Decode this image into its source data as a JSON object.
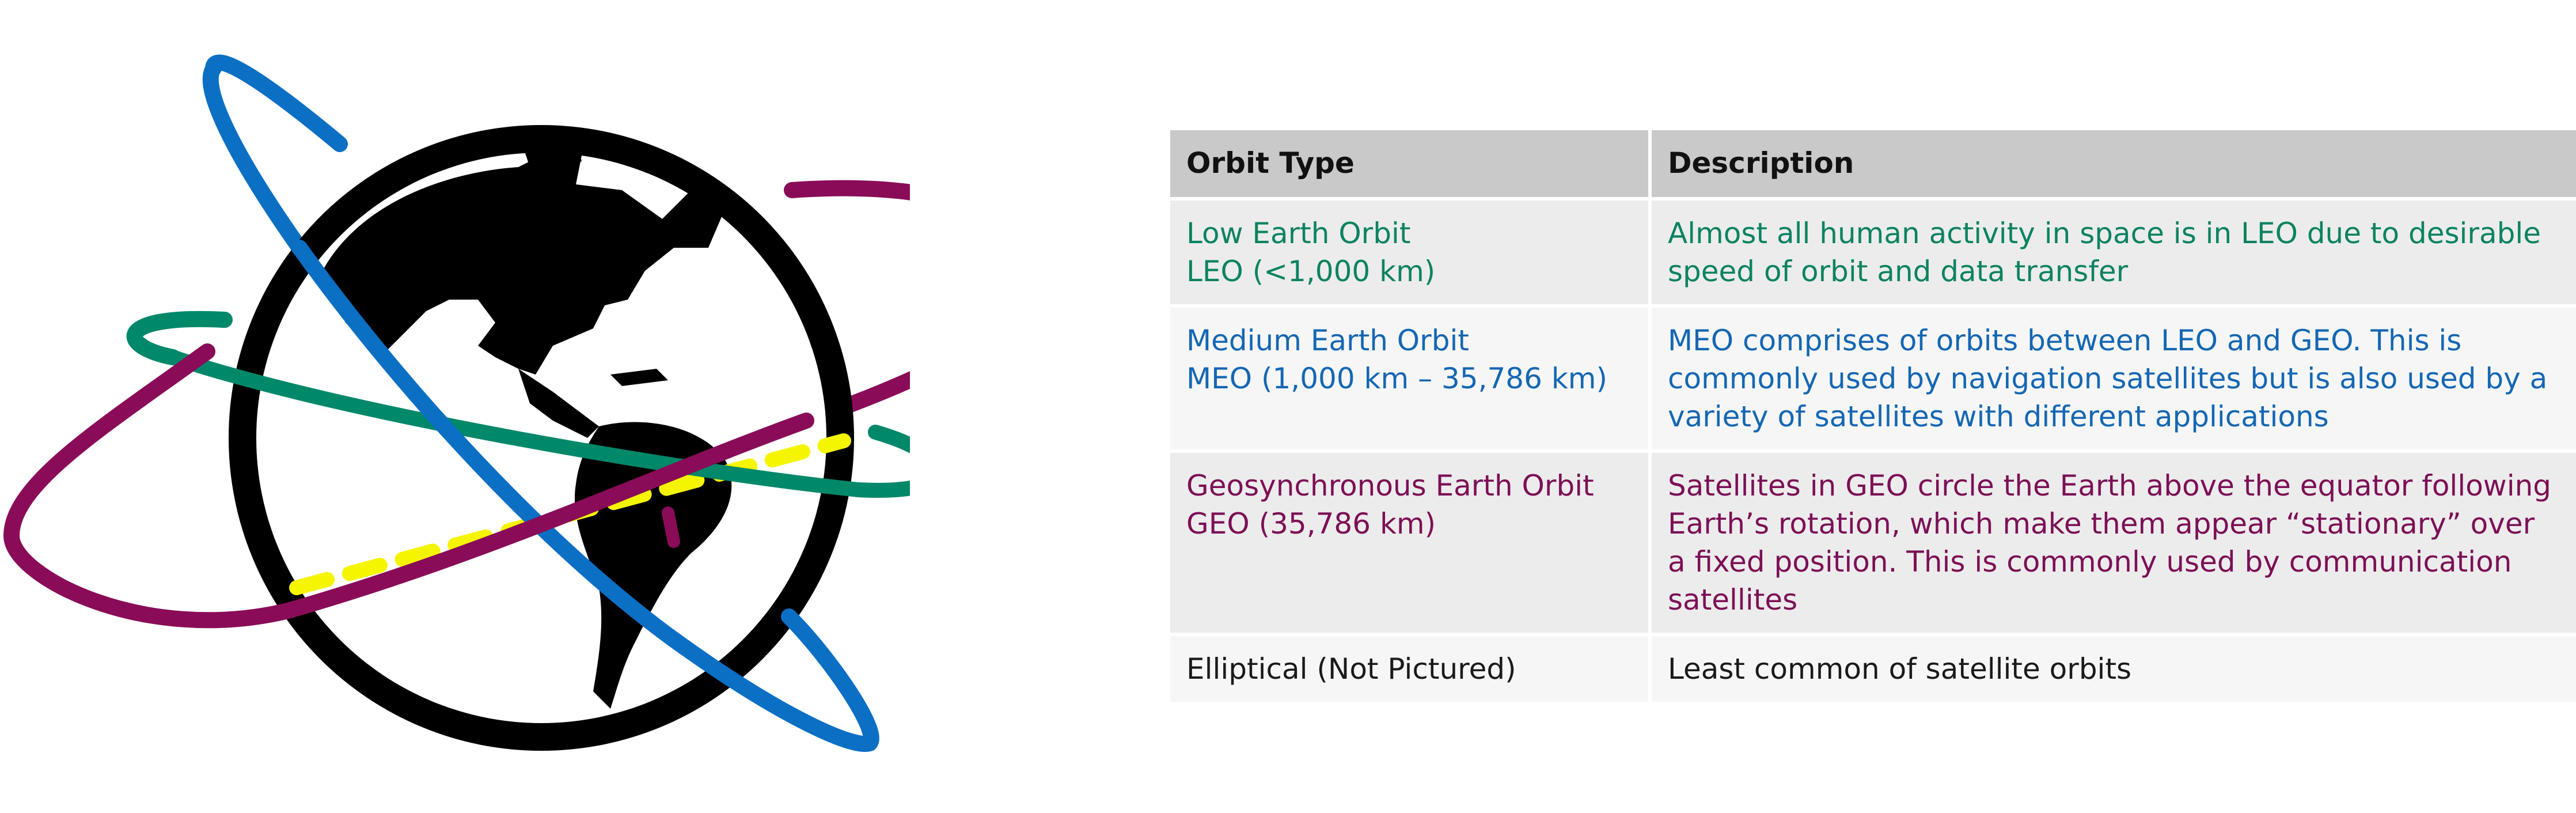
{
  "colors": {
    "leo": "#0b8362",
    "meo": "#1467b3",
    "geo": "#7d0f56",
    "elliptical": "#1a1a1a",
    "header_bg": "#c9c9c9",
    "equator_dash": "#f5f500",
    "orbit_blue": "#0b6fc4",
    "orbit_green": "#00886a",
    "orbit_purple": "#8a0c58"
  },
  "table": {
    "headers": {
      "type": "Orbit Type",
      "description": "Description"
    },
    "rows": [
      {
        "key": "leo",
        "type_lines": [
          "Low Earth Orbit",
          "LEO (<1,000 km)"
        ],
        "description": "Almost all human activity in space is in LEO due to desirable speed of orbit and data transfer"
      },
      {
        "key": "meo",
        "type_lines": [
          "Medium Earth Orbit",
          "MEO (1,000 km – 35,786 km)"
        ],
        "description": "MEO comprises of orbits between LEO and GEO. This is commonly used by navigation satellites but is also used by a variety of satellites with different applications"
      },
      {
        "key": "geo",
        "type_lines": [
          "Geosynchronous Earth Orbit",
          "GEO (35,786 km)"
        ],
        "description": "Satellites in GEO circle the Earth above the equator following Earth’s rotation, which make them appear “stationary” over a fixed position. This is commonly used by communication satellites"
      },
      {
        "key": "elliptical",
        "type_lines": [
          "Elliptical (Not Pictured)"
        ],
        "description": "Least common of satellite orbits"
      }
    ]
  }
}
